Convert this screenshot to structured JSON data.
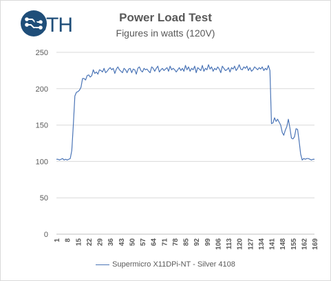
{
  "logo": {
    "text": "STH",
    "icon": "sth-circuit-logo-icon",
    "color": "#1f4e79"
  },
  "chart_data": {
    "type": "line",
    "title": "Power Load Test",
    "subtitle": "Figures in watts (120V)",
    "xlabel": "",
    "ylabel": "",
    "ylim": [
      0,
      250
    ],
    "yticks": [
      0,
      50,
      100,
      150,
      200,
      250
    ],
    "xlim": [
      1,
      169
    ],
    "xticks": [
      1,
      8,
      15,
      22,
      29,
      36,
      43,
      50,
      57,
      64,
      71,
      78,
      85,
      92,
      99,
      106,
      113,
      120,
      127,
      134,
      141,
      148,
      155,
      162,
      169
    ],
    "grid": true,
    "legend": "bottom",
    "series": [
      {
        "name": "Supermicro X11DPi-NT - Silver 4108",
        "color": "#4a74b6",
        "x": [
          1,
          2,
          3,
          4,
          5,
          6,
          7,
          8,
          9,
          10,
          11,
          12,
          13,
          14,
          15,
          16,
          17,
          18,
          19,
          20,
          21,
          22,
          23,
          24,
          25,
          26,
          27,
          28,
          29,
          30,
          31,
          32,
          33,
          34,
          35,
          36,
          37,
          38,
          39,
          40,
          41,
          42,
          43,
          44,
          45,
          46,
          47,
          48,
          49,
          50,
          51,
          52,
          53,
          54,
          55,
          56,
          57,
          58,
          59,
          60,
          61,
          62,
          63,
          64,
          65,
          66,
          67,
          68,
          69,
          70,
          71,
          72,
          73,
          74,
          75,
          76,
          77,
          78,
          79,
          80,
          81,
          82,
          83,
          84,
          85,
          86,
          87,
          88,
          89,
          90,
          91,
          92,
          93,
          94,
          95,
          96,
          97,
          98,
          99,
          100,
          101,
          102,
          103,
          104,
          105,
          106,
          107,
          108,
          109,
          110,
          111,
          112,
          113,
          114,
          115,
          116,
          117,
          118,
          119,
          120,
          121,
          122,
          123,
          124,
          125,
          126,
          127,
          128,
          129,
          130,
          131,
          132,
          133,
          134,
          135,
          136,
          137,
          138,
          139,
          140,
          141,
          142,
          143,
          144,
          145,
          146,
          147,
          148,
          149,
          150,
          151,
          152,
          153,
          154,
          155,
          156,
          157,
          158,
          159,
          160,
          161,
          162,
          163,
          164,
          165,
          166,
          167,
          168,
          169
        ],
        "values": [
          103,
          103,
          102,
          103,
          104,
          102,
          103,
          102,
          103,
          104,
          115,
          150,
          190,
          195,
          196,
          198,
          202,
          214,
          214,
          212,
          218,
          219,
          216,
          218,
          226,
          221,
          223,
          220,
          226,
          225,
          223,
          228,
          222,
          224,
          227,
          229,
          226,
          228,
          221,
          227,
          230,
          226,
          224,
          222,
          228,
          226,
          222,
          227,
          228,
          222,
          227,
          226,
          220,
          228,
          230,
          225,
          223,
          228,
          226,
          227,
          224,
          222,
          230,
          228,
          224,
          228,
          231,
          223,
          226,
          228,
          225,
          227,
          229,
          224,
          231,
          226,
          228,
          226,
          223,
          226,
          229,
          225,
          228,
          224,
          232,
          226,
          230,
          224,
          228,
          226,
          231,
          222,
          229,
          227,
          225,
          232,
          224,
          228,
          226,
          233,
          227,
          230,
          224,
          228,
          226,
          230,
          227,
          222,
          231,
          228,
          225,
          226,
          229,
          223,
          229,
          227,
          231,
          225,
          228,
          233,
          227,
          226,
          230,
          228,
          231,
          225,
          229,
          224,
          226,
          230,
          228,
          226,
          229,
          227,
          230,
          225,
          228,
          226,
          232,
          225,
          152,
          153,
          160,
          155,
          158,
          154,
          150,
          140,
          136,
          143,
          148,
          158,
          146,
          132,
          131,
          134,
          145,
          144,
          128,
          110,
          102,
          104,
          103,
          104,
          104,
          103,
          102,
          103,
          103
        ]
      }
    ]
  }
}
